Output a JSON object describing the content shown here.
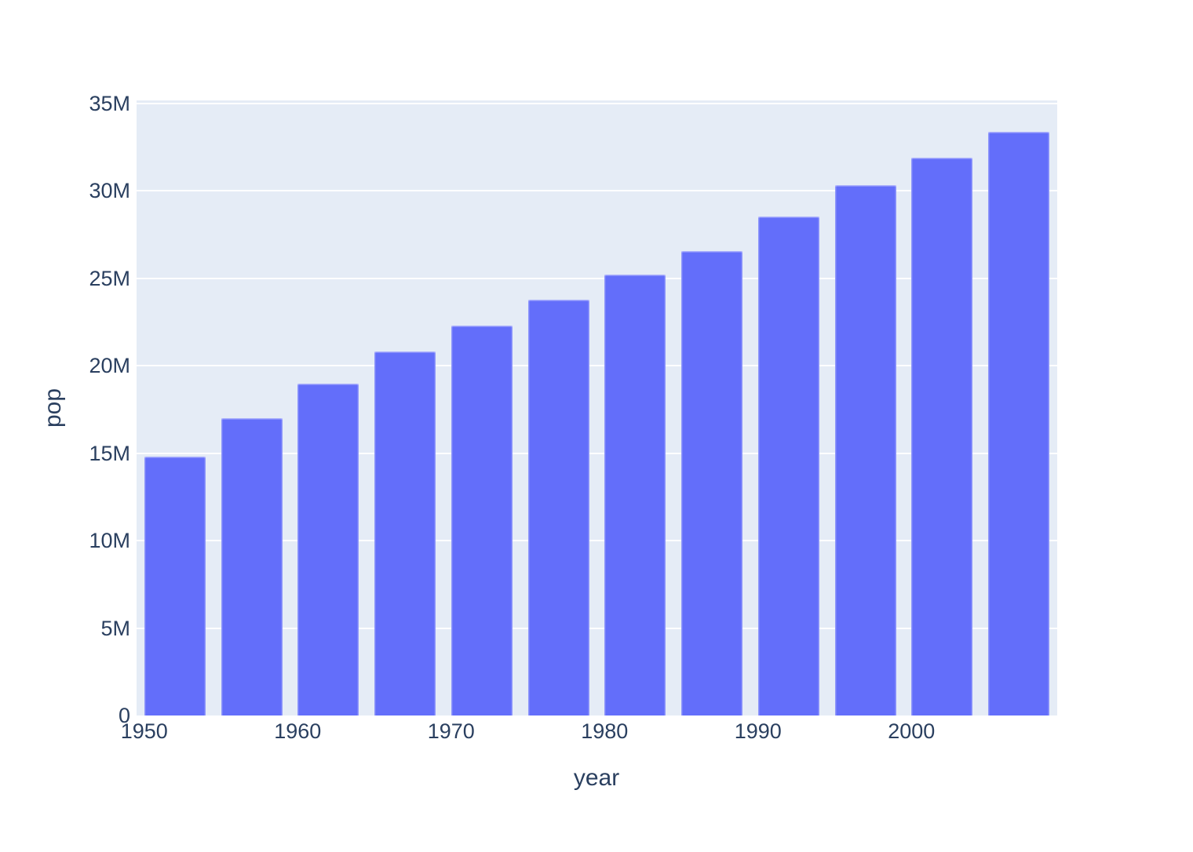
{
  "chart_data": {
    "type": "bar",
    "title": "",
    "xlabel": "year",
    "ylabel": "pop",
    "x": [
      1952,
      1957,
      1962,
      1967,
      1972,
      1977,
      1982,
      1987,
      1992,
      1997,
      2002,
      2007
    ],
    "series": [
      {
        "name": "pop",
        "values": [
          14785584,
          17010154,
          18985849,
          20819767,
          22284500,
          23796400,
          25201900,
          26549700,
          28523502,
          30305843,
          31902268,
          33390141
        ]
      }
    ],
    "xlim": [
      1949.5,
      2009.5
    ],
    "ylim": [
      0,
      35170000
    ],
    "bar_width_in_x_units": 4,
    "xticks": [
      {
        "value": 1950,
        "label": "1950"
      },
      {
        "value": 1960,
        "label": "1960"
      },
      {
        "value": 1970,
        "label": "1970"
      },
      {
        "value": 1980,
        "label": "1980"
      },
      {
        "value": 1990,
        "label": "1990"
      },
      {
        "value": 2000,
        "label": "2000"
      }
    ],
    "yticks": [
      {
        "value": 0,
        "label": "0"
      },
      {
        "value": 5000000,
        "label": "5M"
      },
      {
        "value": 10000000,
        "label": "10M"
      },
      {
        "value": 15000000,
        "label": "15M"
      },
      {
        "value": 20000000,
        "label": "20M"
      },
      {
        "value": 25000000,
        "label": "25M"
      },
      {
        "value": 30000000,
        "label": "30M"
      },
      {
        "value": 35000000,
        "label": "35M"
      }
    ],
    "grid": "horizontal-only",
    "legend": "none",
    "colors": {
      "bar": "#636efa",
      "plot_background": "#e5ecf6",
      "gridline": "#ffffff",
      "text": "#2a3f5f",
      "paper_background": "#ffffff"
    }
  }
}
